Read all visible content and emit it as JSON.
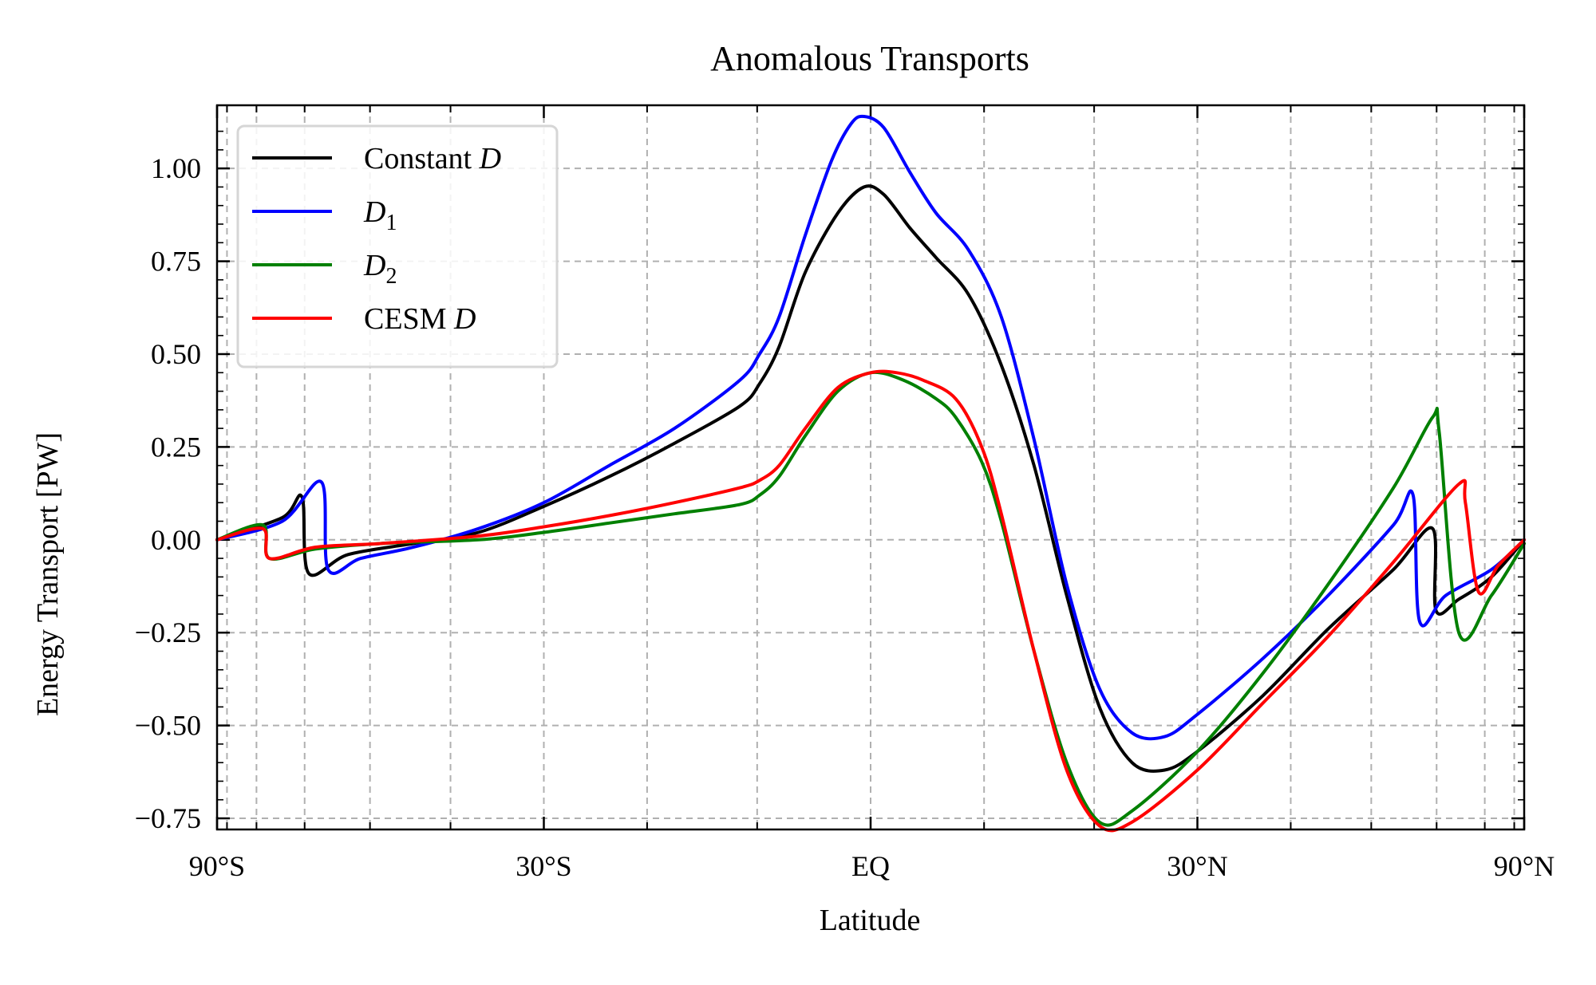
{
  "chart_data": {
    "type": "line",
    "title": "Anomalous Transports",
    "xlabel": "Latitude",
    "ylabel": "Energy Transport [PW]",
    "xlim": [
      -1,
      1
    ],
    "ylim": [
      -0.78,
      1.17
    ],
    "x_major_ticks": [
      -1,
      -0.5,
      0,
      0.5,
      1
    ],
    "x_tick_labels": [
      "90°S",
      "30°S",
      "EQ",
      "30°N",
      "90°N"
    ],
    "x_minor_ticks": [
      -0.9848,
      -0.9397,
      -0.866,
      -0.766,
      -0.6428,
      -0.342,
      -0.1736,
      0.1736,
      0.342,
      0.6428,
      0.766,
      0.866,
      0.9397,
      0.9848
    ],
    "y_ticks": [
      -0.75,
      -0.5,
      -0.25,
      0.0,
      0.25,
      0.5,
      0.75,
      1.0
    ],
    "y_tick_labels": [
      "−0.75",
      "−0.50",
      "−0.25",
      "0.00",
      "0.25",
      "0.50",
      "0.75",
      "1.00"
    ],
    "grid": true,
    "legend_position": "top-left",
    "series": [
      {
        "name": "Constant D",
        "label_base": "Constant ",
        "label_italic": "D",
        "label_sub": "",
        "color": "#000000",
        "points": [
          [
            -1,
            0
          ],
          [
            -0.9,
            0.06
          ],
          [
            -0.87,
            0.115
          ],
          [
            -0.86,
            -0.09
          ],
          [
            -0.8,
            -0.04
          ],
          [
            -0.7,
            -0.01
          ],
          [
            -0.6,
            0.02
          ],
          [
            -0.5,
            0.09
          ],
          [
            -0.4,
            0.17
          ],
          [
            -0.3,
            0.26
          ],
          [
            -0.2,
            0.36
          ],
          [
            -0.17,
            0.42
          ],
          [
            -0.14,
            0.52
          ],
          [
            -0.1,
            0.72
          ],
          [
            -0.05,
            0.88
          ],
          [
            -0.01,
            0.95
          ],
          [
            0.02,
            0.93
          ],
          [
            0.06,
            0.84
          ],
          [
            0.1,
            0.76
          ],
          [
            0.15,
            0.66
          ],
          [
            0.2,
            0.47
          ],
          [
            0.25,
            0.2
          ],
          [
            0.3,
            -0.15
          ],
          [
            0.35,
            -0.45
          ],
          [
            0.4,
            -0.6
          ],
          [
            0.45,
            -0.62
          ],
          [
            0.5,
            -0.57
          ],
          [
            0.6,
            -0.42
          ],
          [
            0.7,
            -0.24
          ],
          [
            0.8,
            -0.08
          ],
          [
            0.86,
            0.03
          ],
          [
            0.865,
            -0.19
          ],
          [
            0.9,
            -0.16
          ],
          [
            0.95,
            -0.1
          ],
          [
            1,
            0
          ]
        ]
      },
      {
        "name": "D1",
        "label_base": "",
        "label_italic": "D",
        "label_sub": "1",
        "color": "#0000ff",
        "points": [
          [
            -1,
            0
          ],
          [
            -0.9,
            0.05
          ],
          [
            -0.84,
            0.155
          ],
          [
            -0.83,
            -0.08
          ],
          [
            -0.78,
            -0.05
          ],
          [
            -0.7,
            -0.02
          ],
          [
            -0.6,
            0.03
          ],
          [
            -0.5,
            0.1
          ],
          [
            -0.4,
            0.2
          ],
          [
            -0.3,
            0.3
          ],
          [
            -0.2,
            0.43
          ],
          [
            -0.17,
            0.5
          ],
          [
            -0.14,
            0.6
          ],
          [
            -0.1,
            0.82
          ],
          [
            -0.06,
            1.02
          ],
          [
            -0.03,
            1.12
          ],
          [
            -0.01,
            1.14
          ],
          [
            0.02,
            1.11
          ],
          [
            0.06,
            0.99
          ],
          [
            0.1,
            0.88
          ],
          [
            0.15,
            0.78
          ],
          [
            0.2,
            0.6
          ],
          [
            0.25,
            0.27
          ],
          [
            0.3,
            -0.12
          ],
          [
            0.35,
            -0.4
          ],
          [
            0.4,
            -0.52
          ],
          [
            0.45,
            -0.53
          ],
          [
            0.5,
            -0.47
          ],
          [
            0.6,
            -0.32
          ],
          [
            0.7,
            -0.15
          ],
          [
            0.8,
            0.04
          ],
          [
            0.83,
            0.12
          ],
          [
            0.84,
            -0.22
          ],
          [
            0.88,
            -0.15
          ],
          [
            0.95,
            -0.08
          ],
          [
            1,
            0
          ]
        ]
      },
      {
        "name": "D2",
        "label_base": "",
        "label_italic": "D",
        "label_sub": "2",
        "color": "#008000",
        "points": [
          [
            -1,
            0
          ],
          [
            -0.93,
            0.04
          ],
          [
            -0.92,
            -0.05
          ],
          [
            -0.85,
            -0.025
          ],
          [
            -0.75,
            -0.01
          ],
          [
            -0.6,
            0.0
          ],
          [
            -0.5,
            0.02
          ],
          [
            -0.4,
            0.045
          ],
          [
            -0.3,
            0.07
          ],
          [
            -0.2,
            0.095
          ],
          [
            -0.17,
            0.12
          ],
          [
            -0.14,
            0.17
          ],
          [
            -0.1,
            0.28
          ],
          [
            -0.05,
            0.4
          ],
          [
            0,
            0.45
          ],
          [
            0.05,
            0.43
          ],
          [
            0.1,
            0.38
          ],
          [
            0.13,
            0.33
          ],
          [
            0.17,
            0.21
          ],
          [
            0.2,
            0.05
          ],
          [
            0.25,
            -0.3
          ],
          [
            0.3,
            -0.6
          ],
          [
            0.35,
            -0.76
          ],
          [
            0.4,
            -0.73
          ],
          [
            0.5,
            -0.57
          ],
          [
            0.6,
            -0.36
          ],
          [
            0.7,
            -0.12
          ],
          [
            0.8,
            0.14
          ],
          [
            0.86,
            0.33
          ],
          [
            0.87,
            0.29
          ],
          [
            0.9,
            -0.25
          ],
          [
            0.95,
            -0.15
          ],
          [
            1,
            -0.01
          ]
        ]
      },
      {
        "name": "CESM D",
        "label_base": "CESM ",
        "label_italic": "D",
        "label_sub": "",
        "color": "#ff0000",
        "points": [
          [
            -1,
            0
          ],
          [
            -0.93,
            0.03
          ],
          [
            -0.92,
            -0.05
          ],
          [
            -0.85,
            -0.02
          ],
          [
            -0.75,
            -0.01
          ],
          [
            -0.6,
            0.01
          ],
          [
            -0.5,
            0.035
          ],
          [
            -0.4,
            0.065
          ],
          [
            -0.3,
            0.1
          ],
          [
            -0.2,
            0.14
          ],
          [
            -0.17,
            0.16
          ],
          [
            -0.14,
            0.2
          ],
          [
            -0.1,
            0.3
          ],
          [
            -0.05,
            0.41
          ],
          [
            0,
            0.45
          ],
          [
            0.04,
            0.45
          ],
          [
            0.08,
            0.43
          ],
          [
            0.13,
            0.38
          ],
          [
            0.17,
            0.25
          ],
          [
            0.2,
            0.07
          ],
          [
            0.25,
            -0.3
          ],
          [
            0.3,
            -0.62
          ],
          [
            0.35,
            -0.77
          ],
          [
            0.4,
            -0.76
          ],
          [
            0.5,
            -0.62
          ],
          [
            0.6,
            -0.44
          ],
          [
            0.7,
            -0.26
          ],
          [
            0.8,
            -0.06
          ],
          [
            0.9,
            0.15
          ],
          [
            0.91,
            0.1
          ],
          [
            0.93,
            -0.14
          ],
          [
            0.96,
            -0.07
          ],
          [
            1,
            0
          ]
        ]
      }
    ]
  }
}
